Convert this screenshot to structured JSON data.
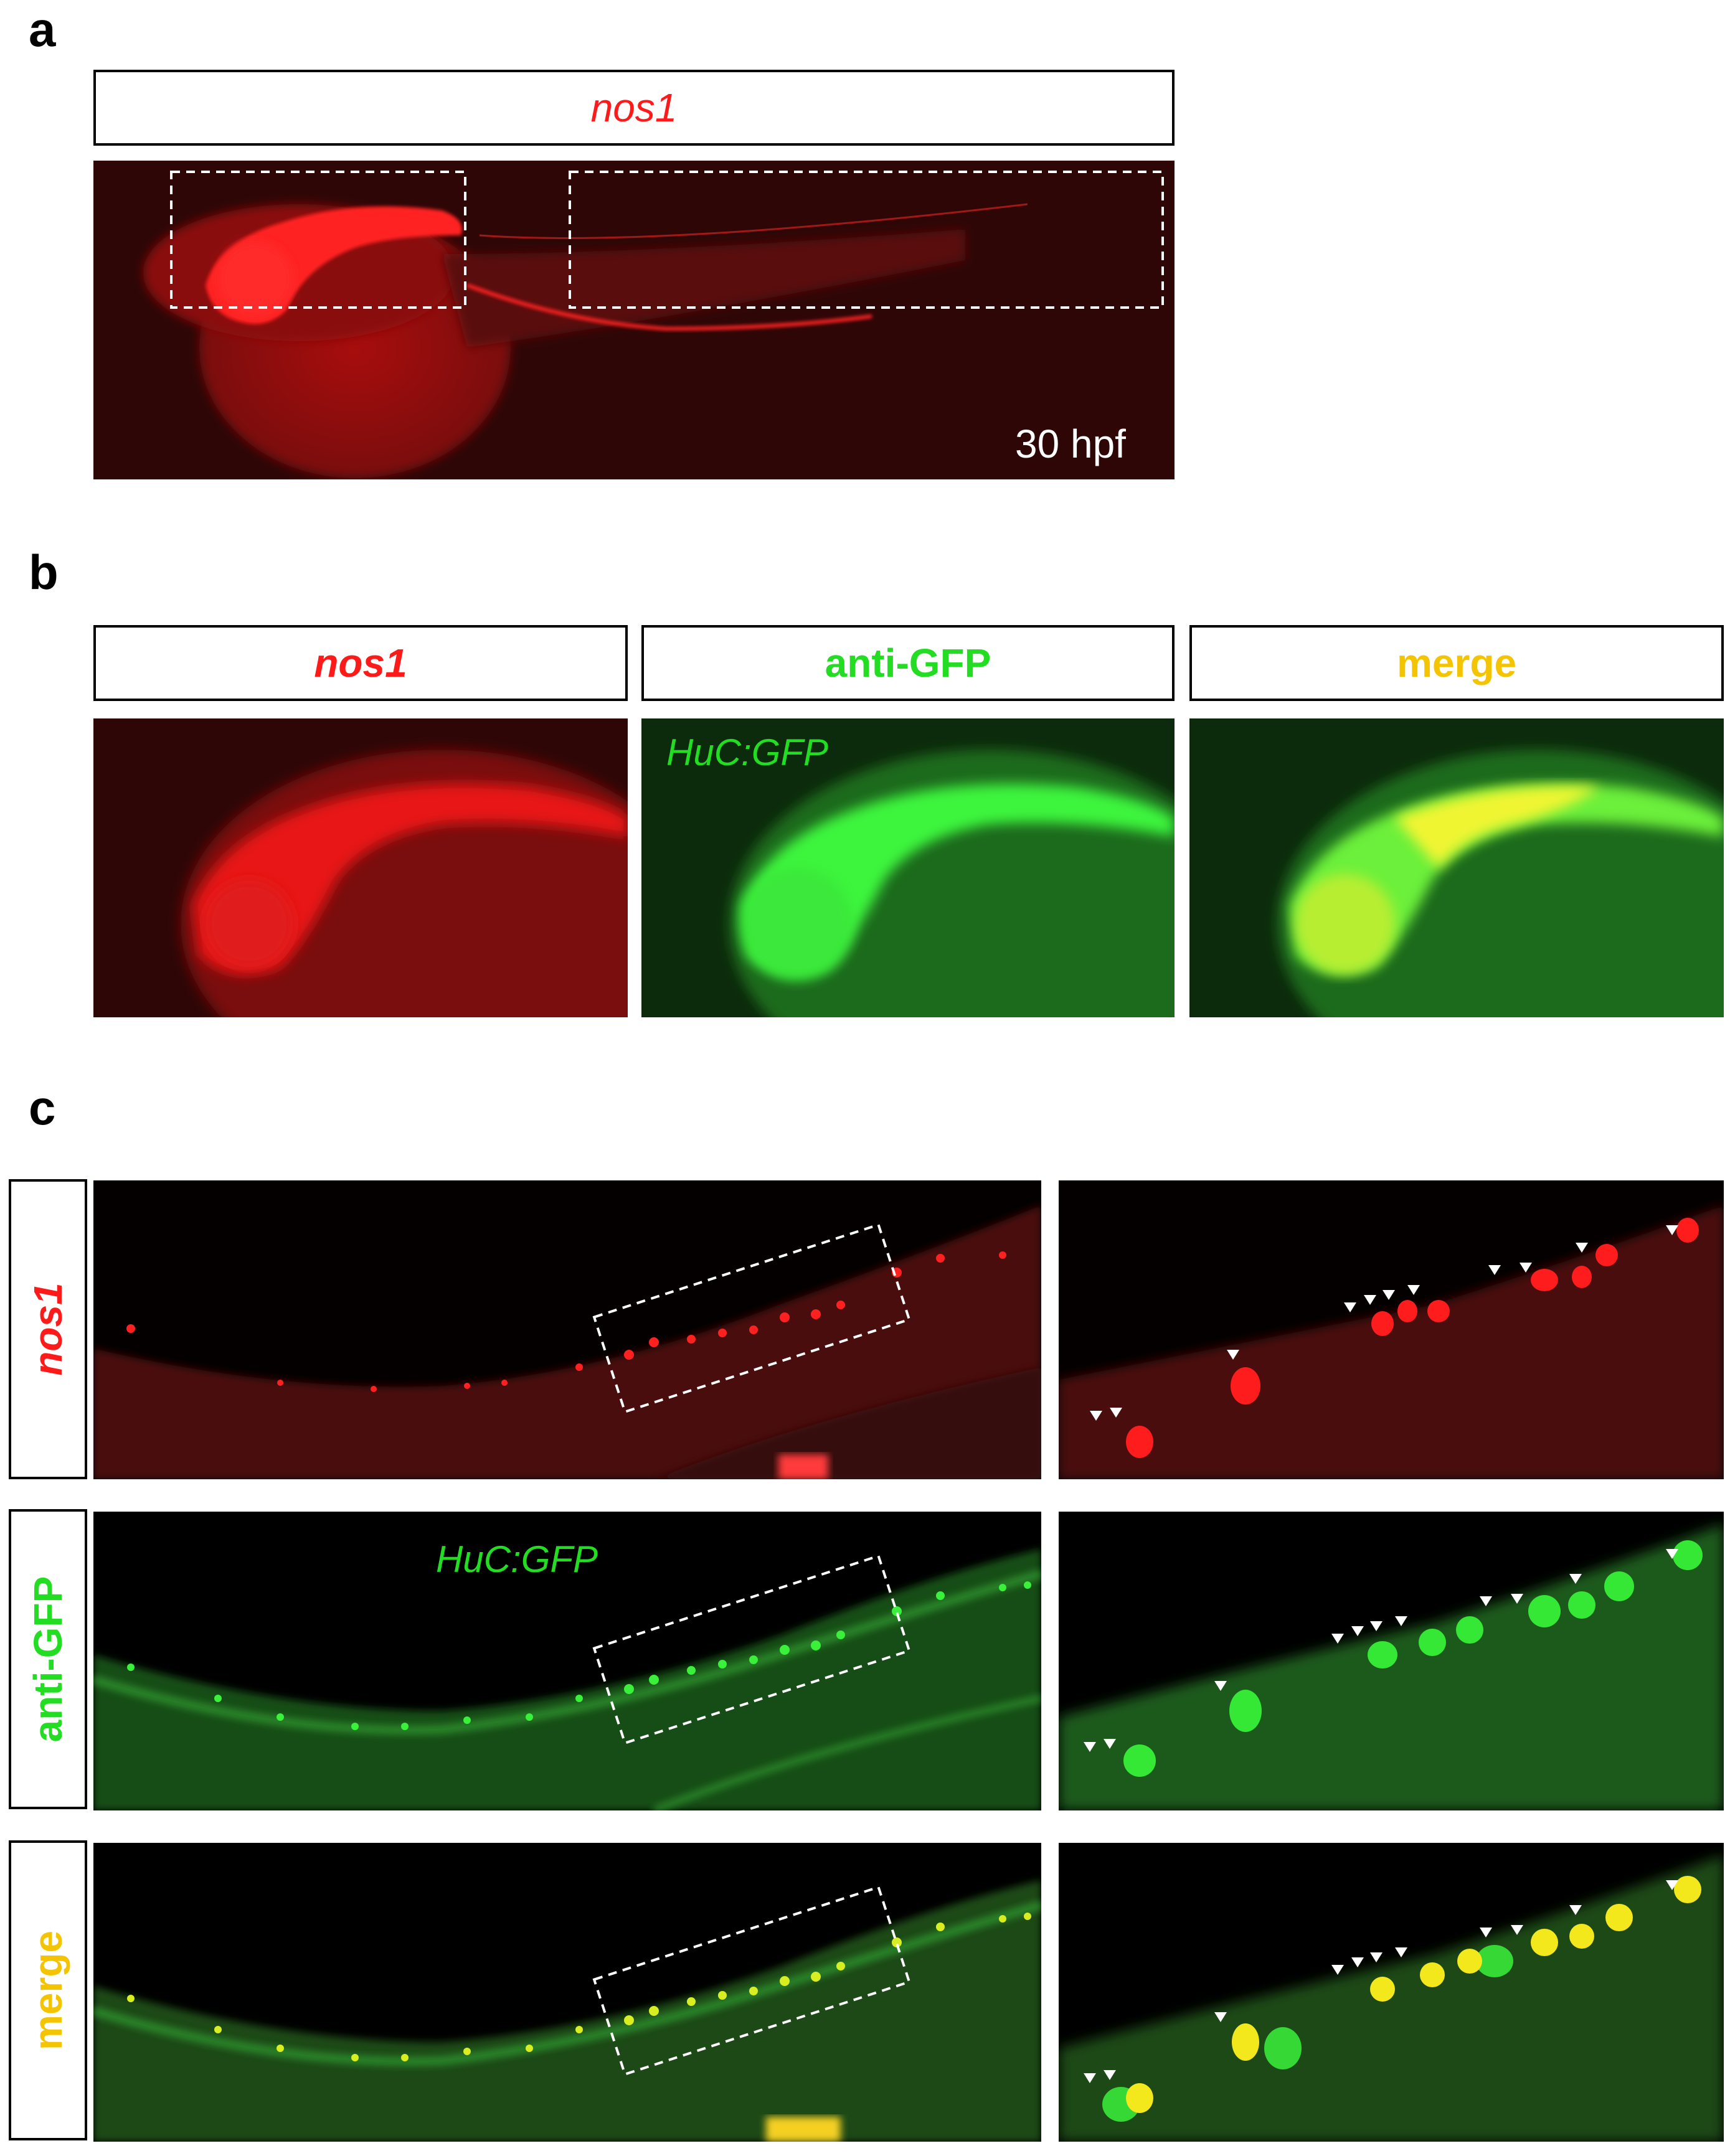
{
  "panel_a": {
    "letter": "a",
    "header": "nos1",
    "timepoint": "30 hpf",
    "colors": {
      "signal": "#ff1a1a",
      "background": "#2e0606"
    }
  },
  "panel_b": {
    "letter": "b",
    "headers": [
      {
        "text": "nos1",
        "color": "#ff1a1a"
      },
      {
        "text": "anti-GFP",
        "color": "#22dd22"
      },
      {
        "text": "merge",
        "color": "#f5c400"
      }
    ],
    "overlay": "HuC:GFP"
  },
  "panel_c": {
    "letter": "c",
    "row_labels": [
      {
        "text": "nos1",
        "color": "#ff1a1a"
      },
      {
        "text": "anti-GFP",
        "color": "#22dd22"
      },
      {
        "text": "merge",
        "color": "#f5c400"
      }
    ],
    "overlay": "HuC:GFP"
  }
}
